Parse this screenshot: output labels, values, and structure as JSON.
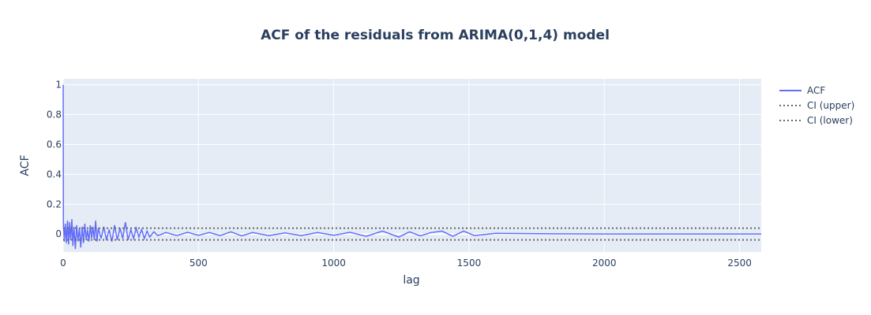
{
  "chart_data": {
    "type": "line",
    "title": "ACF of the residuals from ARIMA(0,1,4) model",
    "xlabel": "lag",
    "ylabel": "ACF",
    "xlim": [
      0,
      2580
    ],
    "ylim": [
      -0.12,
      1.04
    ],
    "x_ticks": [
      {
        "value": 0,
        "label": "0"
      },
      {
        "value": 500,
        "label": "500"
      },
      {
        "value": 1000,
        "label": "1000"
      },
      {
        "value": 1500,
        "label": "1500"
      },
      {
        "value": 2000,
        "label": "2000"
      },
      {
        "value": 2500,
        "label": "2500"
      }
    ],
    "y_ticks": [
      {
        "value": 0,
        "label": "0"
      },
      {
        "value": 0.2,
        "label": "0.2"
      },
      {
        "value": 0.4,
        "label": "0.4"
      },
      {
        "value": 0.6,
        "label": "0.6"
      },
      {
        "value": 0.8,
        "label": "0.8"
      },
      {
        "value": 1,
        "label": "1"
      }
    ],
    "grid": true,
    "legend_position": "right",
    "colors": {
      "acf": "#636efa",
      "ci": "#696969",
      "plot_bg": "#e5ecf6",
      "grid": "#ffffff",
      "text": "#2a3f5f"
    },
    "series": [
      {
        "name": "ACF",
        "style": "solid",
        "x": [
          0,
          1,
          4,
          8,
          12,
          16,
          20,
          24,
          28,
          32,
          36,
          40,
          45,
          50,
          55,
          60,
          65,
          70,
          75,
          80,
          85,
          90,
          95,
          100,
          105,
          110,
          115,
          120,
          125,
          130,
          140,
          150,
          160,
          170,
          180,
          190,
          200,
          210,
          220,
          230,
          240,
          250,
          260,
          270,
          280,
          290,
          300,
          310,
          320,
          335,
          350,
          380,
          420,
          460,
          500,
          540,
          580,
          620,
          660,
          700,
          760,
          820,
          880,
          940,
          1000,
          1060,
          1120,
          1180,
          1240,
          1280,
          1320,
          1360,
          1400,
          1440,
          1480,
          1520,
          1600,
          1800,
          2000,
          2200,
          2400,
          2580
        ],
        "y": [
          1.0,
          0.06,
          -0.05,
          0.07,
          -0.06,
          0.09,
          -0.07,
          0.08,
          -0.04,
          0.1,
          -0.08,
          0.05,
          -0.1,
          0.06,
          -0.05,
          0.04,
          -0.09,
          0.05,
          -0.06,
          0.07,
          -0.04,
          0.03,
          -0.05,
          0.06,
          -0.03,
          0.05,
          -0.04,
          0.09,
          -0.05,
          0.04,
          -0.03,
          0.05,
          -0.04,
          0.03,
          -0.05,
          0.06,
          -0.04,
          0.04,
          -0.03,
          0.08,
          -0.04,
          0.03,
          -0.03,
          0.04,
          -0.02,
          0.03,
          -0.03,
          0.02,
          -0.02,
          0.015,
          -0.01,
          0.01,
          -0.01,
          0.012,
          -0.008,
          0.01,
          -0.01,
          0.015,
          -0.012,
          0.01,
          -0.01,
          0.008,
          -0.01,
          0.01,
          -0.008,
          0.012,
          -0.015,
          0.02,
          -0.02,
          0.015,
          -0.012,
          0.01,
          0.02,
          -0.015,
          0.02,
          -0.01,
          0.005,
          0.002,
          0.001,
          0.001,
          0.001,
          0.001
        ]
      },
      {
        "name": "CI (upper)",
        "style": "dotted",
        "x": [
          0,
          2580
        ],
        "y": [
          0.039,
          0.039
        ]
      },
      {
        "name": "CI (lower)",
        "style": "dotted",
        "x": [
          0,
          2580
        ],
        "y": [
          -0.039,
          -0.039
        ]
      }
    ]
  }
}
